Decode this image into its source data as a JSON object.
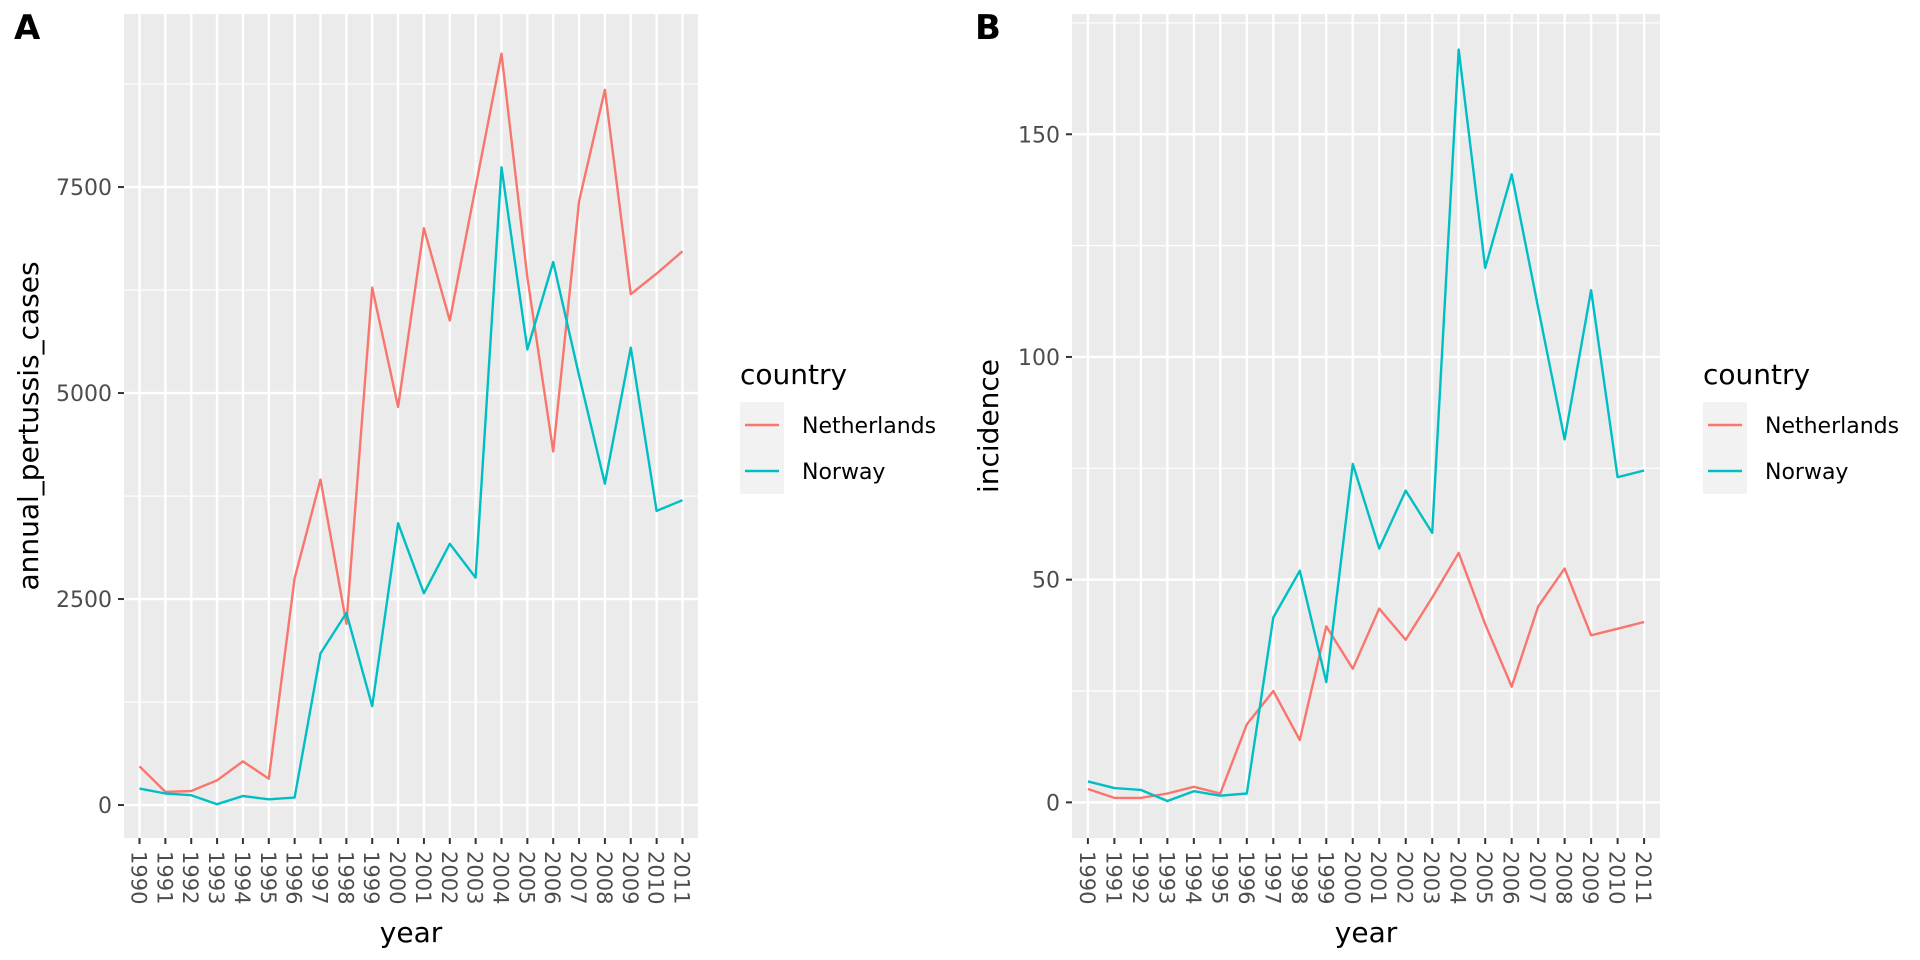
{
  "colors": {
    "panel_background": "#EBEBEB",
    "grid_major": "#FFFFFF",
    "netherlands": "#F8766D",
    "norway": "#00BFC4",
    "legend_key_background": "#F2F2F2",
    "tick_text": "#4D4D4D"
  },
  "chart_data": [
    {
      "panel_label": "A",
      "type": "line",
      "xlabel": "year",
      "ylabel": "annual_pertussis_cases",
      "x": [
        "1990",
        "1991",
        "1992",
        "1993",
        "1994",
        "1995",
        "1996",
        "1997",
        "1998",
        "1999",
        "2000",
        "2001",
        "2002",
        "2003",
        "2004",
        "2005",
        "2006",
        "2007",
        "2008",
        "2009",
        "2010",
        "2011"
      ],
      "ylim": [
        -400,
        9600
      ],
      "yticks": [
        0,
        2500,
        5000,
        7500
      ],
      "grid": true,
      "legend": {
        "title": "country",
        "position": "right",
        "entries": [
          "Netherlands",
          "Norway"
        ]
      },
      "series": [
        {
          "name": "Netherlands",
          "color": "#F8766D",
          "values": [
            470,
            160,
            170,
            300,
            530,
            320,
            2750,
            3950,
            2200,
            6280,
            4830,
            7000,
            5880,
            7500,
            9120,
            6400,
            4290,
            7330,
            8680,
            6200,
            6450,
            6720
          ]
        },
        {
          "name": "Norway",
          "color": "#00BFC4",
          "values": [
            200,
            140,
            120,
            10,
            110,
            70,
            90,
            1840,
            2330,
            1200,
            3420,
            2570,
            3170,
            2760,
            7740,
            5530,
            6590,
            5210,
            3900,
            5550,
            3570,
            3700
          ]
        }
      ]
    },
    {
      "panel_label": "B",
      "type": "line",
      "xlabel": "year",
      "ylabel": "incidence",
      "x": [
        "1990",
        "1991",
        "1992",
        "1993",
        "1994",
        "1995",
        "1996",
        "1997",
        "1998",
        "1999",
        "2000",
        "2001",
        "2002",
        "2003",
        "2004",
        "2005",
        "2006",
        "2007",
        "2008",
        "2009",
        "2010",
        "2011"
      ],
      "ylim": [
        -8,
        177
      ],
      "yticks": [
        0,
        50,
        100,
        150
      ],
      "grid": true,
      "legend": {
        "title": "country",
        "position": "right",
        "entries": [
          "Netherlands",
          "Norway"
        ]
      },
      "series": [
        {
          "name": "Netherlands",
          "color": "#F8766D",
          "values": [
            3,
            1,
            1,
            2,
            3.5,
            2,
            17.5,
            25,
            14,
            39.5,
            30,
            43.5,
            36.5,
            46,
            56,
            40,
            26,
            44,
            52.5,
            37.5,
            39,
            40.5
          ]
        },
        {
          "name": "Norway",
          "color": "#00BFC4",
          "values": [
            4.7,
            3.2,
            2.8,
            0.3,
            2.5,
            1.5,
            2,
            41.5,
            52,
            27,
            76,
            57,
            70,
            60.5,
            169,
            120,
            141,
            111,
            81.5,
            115,
            73,
            74.5
          ]
        }
      ]
    }
  ]
}
